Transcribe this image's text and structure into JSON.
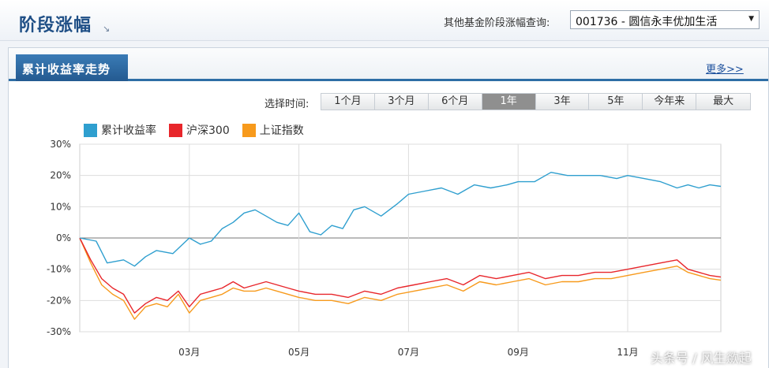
{
  "header": {
    "title": "阶段涨幅",
    "title_arrow": "↘",
    "query_label": "其他基金阶段涨幅查询:",
    "fund_selected": "001736 - 圆信永丰优加生活"
  },
  "panel": {
    "tab_label": "累计收益率走势",
    "more_link": "更多>>",
    "range_label": "选择时间:",
    "ranges": [
      "1个月",
      "3个月",
      "6个月",
      "1年",
      "3年",
      "5年",
      "今年来",
      "最大"
    ],
    "active_range": "1年"
  },
  "watermark": "头条号 / 风生歘起",
  "colors": {
    "cumulative": "#2f9fcf",
    "hs300": "#e8262b",
    "sse": "#f79a1c"
  },
  "chart_data": {
    "type": "line",
    "title": "",
    "xlabel": "",
    "ylabel": "",
    "ylim": [
      -30,
      30
    ],
    "yticks": [
      30,
      20,
      10,
      0,
      -10,
      -20,
      -30
    ],
    "ytick_labels": [
      "30%",
      "20%",
      "10%",
      "0%",
      "-10%",
      "-20%",
      "-30%"
    ],
    "xticks": [
      2,
      4,
      6,
      8,
      10
    ],
    "xtick_labels": [
      "03月",
      "05月",
      "07月",
      "09月",
      "11月"
    ],
    "xlim": [
      0,
      11.7
    ],
    "grid": true,
    "legend": "top-left",
    "series": [
      {
        "name": "累计收益率",
        "color": "#2f9fcf",
        "x": [
          0,
          0.3,
          0.5,
          0.8,
          1.0,
          1.2,
          1.4,
          1.7,
          2.0,
          2.2,
          2.4,
          2.6,
          2.8,
          3.0,
          3.2,
          3.4,
          3.6,
          3.8,
          4.0,
          4.2,
          4.4,
          4.6,
          4.8,
          5.0,
          5.2,
          5.5,
          5.8,
          6.0,
          6.3,
          6.6,
          6.9,
          7.2,
          7.5,
          7.8,
          8.0,
          8.3,
          8.6,
          8.9,
          9.2,
          9.5,
          9.8,
          10.0,
          10.3,
          10.6,
          10.9,
          11.1,
          11.3,
          11.5,
          11.7
        ],
        "y": [
          0,
          -1,
          -8,
          -7,
          -9,
          -6,
          -4,
          -5,
          0,
          -2,
          -1,
          3,
          5,
          8,
          9,
          7,
          5,
          4,
          8,
          2,
          1,
          4,
          3,
          9,
          10,
          7,
          11,
          14,
          15,
          16,
          14,
          17,
          16,
          17,
          18,
          18,
          21,
          20,
          20,
          20,
          19,
          20,
          19,
          18,
          16,
          17,
          16,
          17,
          16.5
        ]
      },
      {
        "name": "沪深300",
        "color": "#e8262b",
        "x": [
          0,
          0.2,
          0.4,
          0.6,
          0.8,
          1.0,
          1.2,
          1.4,
          1.6,
          1.8,
          2.0,
          2.2,
          2.4,
          2.6,
          2.8,
          3.0,
          3.2,
          3.4,
          3.6,
          3.8,
          4.0,
          4.3,
          4.6,
          4.9,
          5.2,
          5.5,
          5.8,
          6.1,
          6.4,
          6.7,
          7.0,
          7.3,
          7.6,
          7.9,
          8.2,
          8.5,
          8.8,
          9.1,
          9.4,
          9.7,
          10.0,
          10.3,
          10.6,
          10.9,
          11.1,
          11.3,
          11.5,
          11.7
        ],
        "y": [
          0,
          -7,
          -13,
          -16,
          -18,
          -24,
          -21,
          -19,
          -20,
          -17,
          -22,
          -18,
          -17,
          -16,
          -14,
          -16,
          -15,
          -14,
          -15,
          -16,
          -17,
          -18,
          -18,
          -19,
          -17,
          -18,
          -16,
          -15,
          -14,
          -13,
          -15,
          -12,
          -13,
          -12,
          -11,
          -13,
          -12,
          -12,
          -11,
          -11,
          -10,
          -9,
          -8,
          -7,
          -10,
          -11,
          -12,
          -12.5
        ]
      },
      {
        "name": "上证指数",
        "color": "#f79a1c",
        "x": [
          0,
          0.2,
          0.4,
          0.6,
          0.8,
          1.0,
          1.2,
          1.4,
          1.6,
          1.8,
          2.0,
          2.2,
          2.4,
          2.6,
          2.8,
          3.0,
          3.2,
          3.4,
          3.6,
          3.8,
          4.0,
          4.3,
          4.6,
          4.9,
          5.2,
          5.5,
          5.8,
          6.1,
          6.4,
          6.7,
          7.0,
          7.3,
          7.6,
          7.9,
          8.2,
          8.5,
          8.8,
          9.1,
          9.4,
          9.7,
          10.0,
          10.3,
          10.6,
          10.9,
          11.1,
          11.3,
          11.5,
          11.7
        ],
        "y": [
          0,
          -8,
          -15,
          -18,
          -20,
          -26,
          -22,
          -21,
          -22,
          -18,
          -24,
          -20,
          -19,
          -18,
          -16,
          -17,
          -17,
          -16,
          -17,
          -18,
          -19,
          -20,
          -20,
          -21,
          -19,
          -20,
          -18,
          -17,
          -16,
          -15,
          -17,
          -14,
          -15,
          -14,
          -13,
          -15,
          -14,
          -14,
          -13,
          -13,
          -12,
          -11,
          -10,
          -9,
          -11,
          -12,
          -13,
          -13.5
        ]
      }
    ]
  }
}
